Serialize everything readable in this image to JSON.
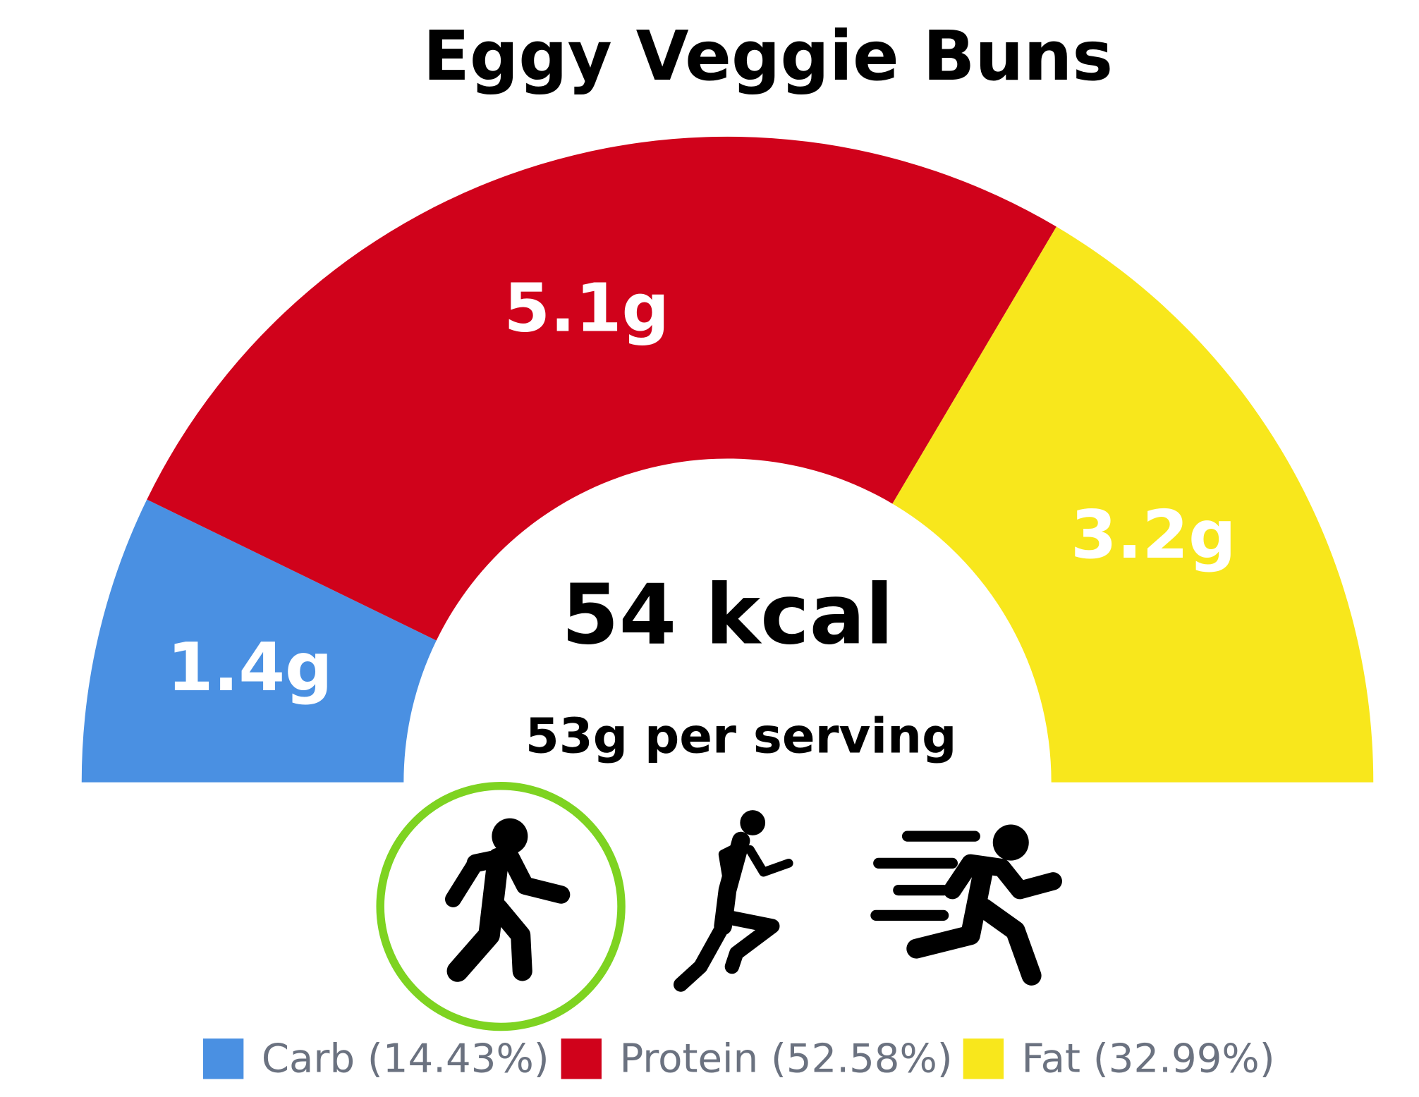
{
  "chart_data": {
    "type": "semi-donut",
    "title": "Eggy Veggie Buns",
    "categories": [
      "Carb (14.43%)",
      "Protein (52.58%)",
      "Fat (32.99%)"
    ],
    "values": [
      1.4,
      5.1,
      3.2
    ],
    "value_labels": [
      "1.4g",
      "5.1g",
      "3.2g"
    ],
    "colors": [
      "#4a90e2",
      "#d0021b",
      "#f8e71c"
    ],
    "annotations": [
      "54 kcal",
      "53g per serving"
    ]
  }
}
